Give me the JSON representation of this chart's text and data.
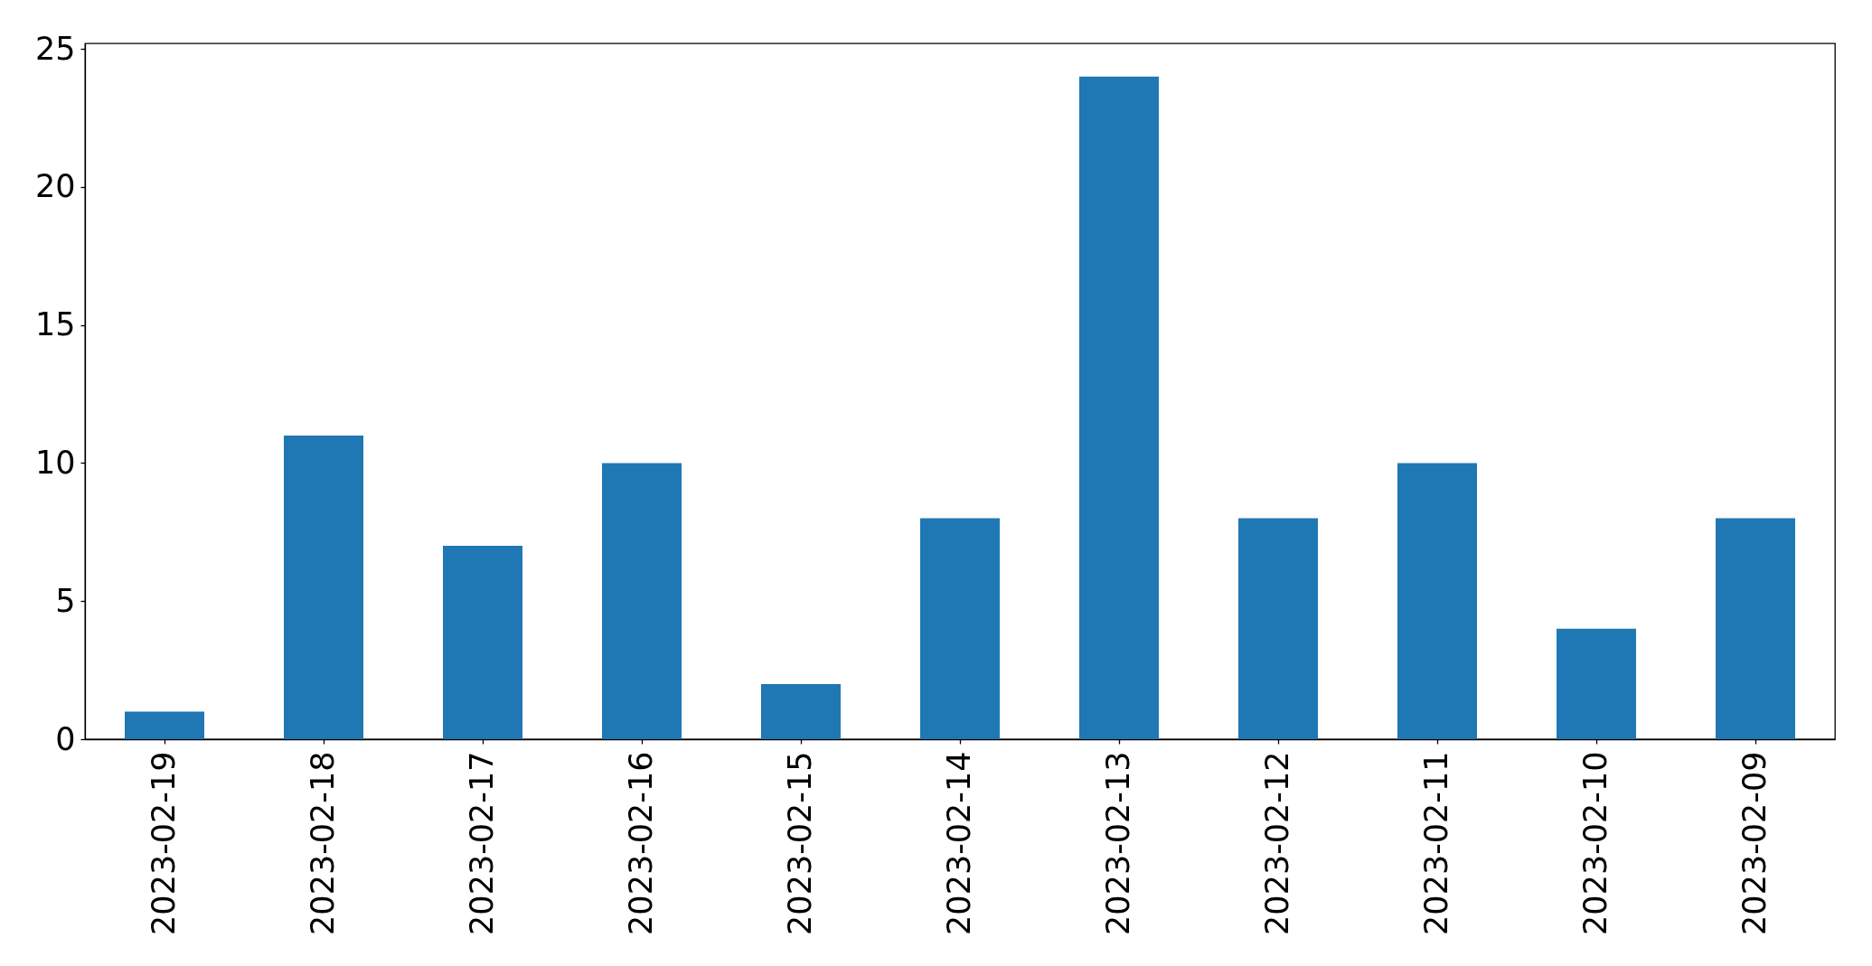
{
  "chart_data": {
    "type": "bar",
    "categories": [
      "2023-02-19",
      "2023-02-18",
      "2023-02-17",
      "2023-02-16",
      "2023-02-15",
      "2023-02-14",
      "2023-02-13",
      "2023-02-12",
      "2023-02-11",
      "2023-02-10",
      "2023-02-09"
    ],
    "values": [
      1,
      11,
      7,
      10,
      2,
      8,
      24,
      8,
      10,
      4,
      8
    ],
    "color": "#1f77b4",
    "ylim": [
      0,
      25.2
    ],
    "yticks": [
      0,
      5,
      10,
      15,
      20,
      25
    ]
  }
}
